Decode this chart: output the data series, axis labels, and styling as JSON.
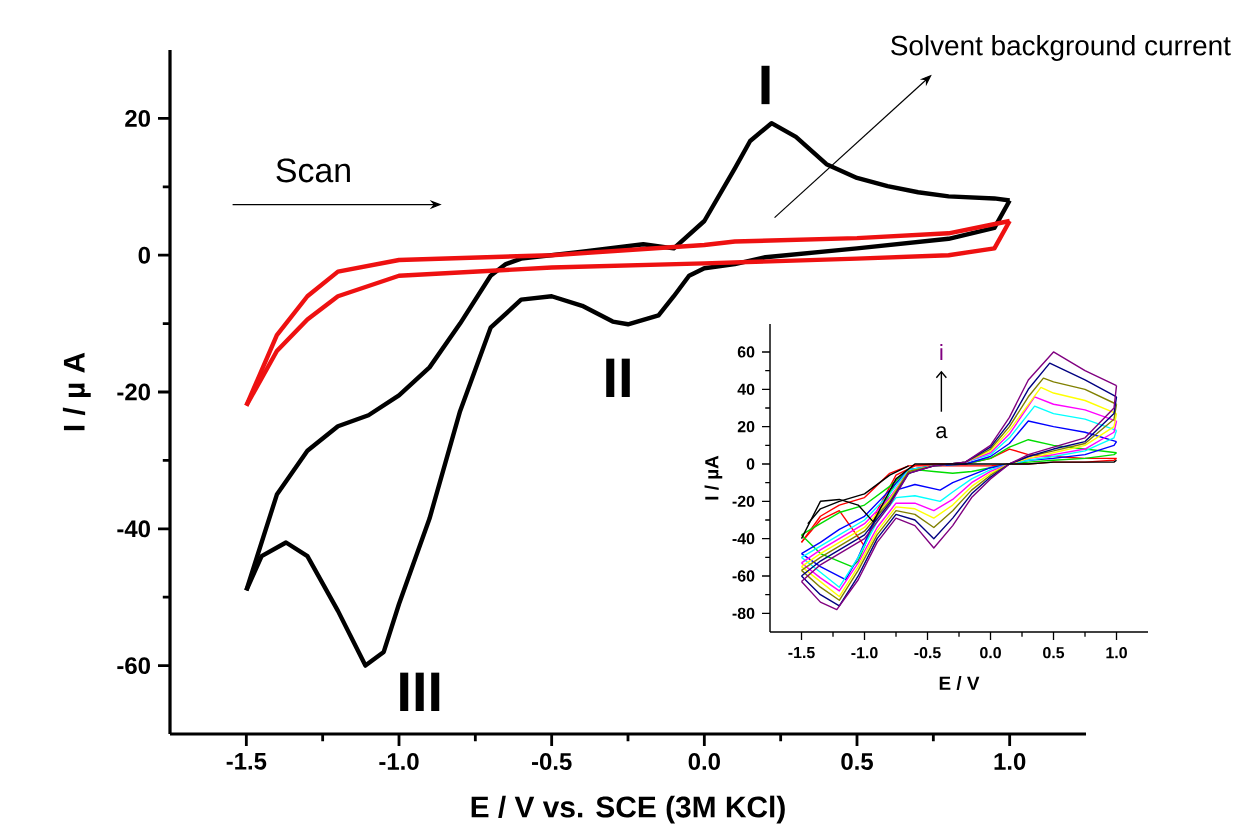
{
  "chart_data": [
    {
      "type": "line",
      "xlabel": "E / V vs. SCE (3M KCl)",
      "ylabel": "I / µ A",
      "xlim": [
        -1.75,
        1.25
      ],
      "ylim": [
        -70,
        30
      ],
      "xticks": [
        -1.5,
        {
          "value": -1,
          "label": "-1.0"
        },
        -0.5,
        {
          "value": 0,
          "label": "0.0"
        },
        0.5,
        {
          "value": 1,
          "label": "1.0"
        }
      ],
      "yticks": [
        -60,
        -40,
        -20,
        0,
        20
      ],
      "series": [
        {
          "color": "#000000",
          "x": [
            -1.5,
            -1.45,
            -1.37,
            -1.3,
            -1.2,
            -1.11,
            -1.05,
            -1.0,
            -0.9,
            -0.8,
            -0.7,
            -0.6,
            -0.5,
            -0.4,
            -0.3,
            -0.25,
            -0.15,
            -0.1,
            -0.05,
            0.0,
            0.1,
            0.2,
            0.5,
            0.8,
            0.95,
            1.0
          ],
          "values": [
            -49,
            -44,
            -42,
            -44,
            -52,
            -60,
            -58,
            -51,
            -38.5,
            -22.8,
            -10.6,
            -6.5,
            -6,
            -7.4,
            -9.7,
            -10.1,
            -8.8,
            -6,
            -3,
            -1.9,
            -1.3,
            -0.3,
            1,
            2.4,
            4,
            8
          ]
        },
        {
          "color": "#000000",
          "x": [
            -1.5,
            -1.4,
            -1.3,
            -1.2,
            -1.1,
            -1.0,
            -0.9,
            -0.8,
            -0.7,
            -0.65,
            -0.6,
            -0.4,
            -0.2,
            -0.1,
            0.0,
            0.1,
            0.15,
            0.22,
            0.3,
            0.4,
            0.5,
            0.6,
            0.7,
            0.8,
            0.95,
            1.0
          ],
          "values": [
            -49,
            -35,
            -28.6,
            -25,
            -23.4,
            -20.5,
            -16.4,
            -10,
            -3,
            -1.3,
            -0.5,
            0.5,
            1.6,
            1,
            5,
            12.7,
            16.7,
            19.3,
            17.3,
            13.3,
            11.3,
            10.1,
            9.2,
            8.6,
            8.3,
            8
          ]
        },
        {
          "color": "#ee1111",
          "x": [
            -1.5,
            -1.4,
            -1.3,
            -1.2,
            -1.0,
            -0.5,
            0.0,
            0.1,
            0.5,
            0.8,
            1.0
          ],
          "values": [
            -22,
            -11.7,
            -6,
            -2.4,
            -0.7,
            0,
            1.5,
            2,
            2.5,
            3.2,
            5
          ]
        },
        {
          "color": "#ee1111",
          "x": [
            -1.5,
            -1.4,
            -1.3,
            -1.2,
            -1.0,
            -0.5,
            0.0,
            0.5,
            0.8,
            0.95,
            1.0
          ],
          "values": [
            -22,
            -14,
            -9.4,
            -6,
            -3,
            -1.8,
            -1.2,
            -0.5,
            0,
            1,
            5
          ]
        }
      ],
      "annotations": [
        {
          "text": "I",
          "x": 0.22,
          "y": 19.3
        },
        {
          "text": "II",
          "x": -0.25,
          "y": -10
        },
        {
          "text": "III",
          "x": -1.11,
          "y": -60
        },
        "Scan",
        "Solvent background current"
      ]
    },
    {
      "type": "line",
      "xlabel": "E / V",
      "ylabel": "I / µA",
      "xlim": [
        -1.75,
        1.25
      ],
      "ylim": [
        -90,
        75
      ],
      "xticks": [
        -1.5,
        {
          "value": -1,
          "label": "-1.0"
        },
        -0.5,
        {
          "value": 0,
          "label": "0.0"
        },
        0.5,
        {
          "value": 1,
          "label": "1.0"
        }
      ],
      "yticks": [
        -80,
        -60,
        -40,
        -20,
        0,
        20,
        40,
        60
      ],
      "series": [
        {
          "color": "#ff0000",
          "x": [
            -1.5,
            -1.35,
            -1.2,
            -1.0,
            -0.9,
            -0.75,
            -0.6,
            -0.45,
            -0.3,
            -0.15,
            0,
            0.15,
            0.3,
            0.5,
            0.75,
            0.98,
            1.0
          ],
          "values": [
            -42,
            -30,
            -25,
            -44,
            -25,
            -6,
            -1,
            -1,
            -1,
            -1,
            -1,
            0,
            0,
            1,
            1,
            2,
            3
          ]
        },
        {
          "color": "#ff0000",
          "x": [
            -1.5,
            -1.35,
            -1.2,
            -1.0,
            -0.8,
            -0.65,
            -0.45,
            -0.2,
            0,
            0.15,
            0.3,
            0.5,
            0.75,
            1.0
          ],
          "values": [
            -42,
            -28,
            -22,
            -18,
            -5,
            -1,
            0,
            0,
            3,
            8,
            5,
            4,
            3,
            3
          ]
        },
        {
          "color": "#00dd00",
          "x": [
            -1.5,
            -1.35,
            -1.1,
            -1.05,
            -0.9,
            -0.75,
            -0.6,
            -0.45,
            -0.3,
            -0.15,
            0,
            0.15,
            0.3,
            0.5,
            0.75,
            0.98,
            1.0
          ],
          "values": [
            -38,
            -48,
            -55,
            -52,
            -28,
            -10,
            -3,
            -4,
            -5,
            -4,
            -2,
            0,
            1,
            2,
            3,
            5,
            6
          ]
        },
        {
          "color": "#00dd00",
          "x": [
            -1.5,
            -1.35,
            -1.2,
            -1.0,
            -0.8,
            -0.65,
            -0.45,
            -0.2,
            0,
            0.15,
            0.3,
            0.5,
            0.75,
            1.0
          ],
          "values": [
            -38,
            -32,
            -26,
            -22,
            -12,
            -3,
            -1,
            0,
            3,
            9,
            13,
            10,
            8,
            6
          ]
        },
        {
          "color": "#0000ff",
          "x": [
            -1.5,
            -1.35,
            -1.15,
            -1.05,
            -0.9,
            -0.75,
            -0.6,
            -0.4,
            -0.3,
            -0.15,
            0,
            0.15,
            0.3,
            0.5,
            0.75,
            0.98,
            1.0
          ],
          "values": [
            -48,
            -55,
            -62,
            -50,
            -27,
            -14,
            -11,
            -14,
            -10,
            -6,
            -2,
            0,
            2,
            3,
            5,
            10,
            12
          ]
        },
        {
          "color": "#0000ff",
          "x": [
            -1.5,
            -1.35,
            -1.2,
            -1.0,
            -0.8,
            -0.65,
            -0.45,
            -0.2,
            0,
            0.15,
            0.3,
            0.5,
            0.75,
            1.0
          ],
          "values": [
            -48,
            -42,
            -35,
            -28,
            -14,
            -3,
            -1,
            0,
            4,
            11,
            23,
            20,
            17,
            12
          ]
        },
        {
          "color": "#00ffff",
          "x": [
            -1.5,
            -1.35,
            -1.2,
            -1.05,
            -0.9,
            -0.75,
            -0.6,
            -0.4,
            -0.3,
            -0.15,
            0,
            0.15,
            0.3,
            0.5,
            0.75,
            0.98,
            1.0
          ],
          "values": [
            -50,
            -58,
            -66,
            -50,
            -31,
            -18,
            -17,
            -20,
            -15,
            -8,
            -3,
            0,
            2,
            4,
            7,
            14,
            18
          ]
        },
        {
          "color": "#00ffff",
          "x": [
            -1.5,
            -1.35,
            -1.2,
            -1.0,
            -0.8,
            -0.65,
            -0.45,
            -0.2,
            0,
            0.15,
            0.35,
            0.5,
            0.75,
            1.0
          ],
          "values": [
            -50,
            -44,
            -38,
            -30,
            -16,
            -3,
            -1,
            1,
            5,
            14,
            31,
            27,
            24,
            18
          ]
        },
        {
          "color": "#ff00ff",
          "x": [
            -1.5,
            -1.35,
            -1.2,
            -1.05,
            -0.9,
            -0.75,
            -0.6,
            -0.45,
            -0.3,
            -0.15,
            0,
            0.15,
            0.3,
            0.5,
            0.75,
            0.98,
            1.0
          ],
          "values": [
            -53,
            -61,
            -68,
            -53,
            -34,
            -21,
            -21,
            -25,
            -19,
            -10,
            -4,
            0,
            3,
            5,
            8,
            17,
            23
          ]
        },
        {
          "color": "#ff00ff",
          "x": [
            -1.5,
            -1.35,
            -1.2,
            -1.0,
            -0.8,
            -0.65,
            -0.45,
            -0.2,
            0,
            0.15,
            0.35,
            0.5,
            0.75,
            1.0
          ],
          "values": [
            -53,
            -46,
            -40,
            -32,
            -18,
            -4,
            -1,
            1,
            6,
            16,
            36,
            32,
            29,
            23
          ]
        },
        {
          "color": "#ffff00",
          "x": [
            -1.5,
            -1.35,
            -1.2,
            -1.05,
            -0.9,
            -0.75,
            -0.6,
            -0.45,
            -0.3,
            -0.15,
            0,
            0.15,
            0.3,
            0.5,
            0.75,
            0.98,
            1.0
          ],
          "values": [
            -55,
            -63,
            -71,
            -55,
            -36,
            -23,
            -24,
            -29,
            -22,
            -12,
            -5,
            0,
            3,
            6,
            10,
            20,
            27
          ]
        },
        {
          "color": "#ffff00",
          "x": [
            -1.5,
            -1.35,
            -1.2,
            -1.0,
            -0.8,
            -0.65,
            -0.45,
            -0.2,
            0,
            0.15,
            0.4,
            0.5,
            0.75,
            1.0
          ],
          "values": [
            -55,
            -48,
            -42,
            -34,
            -19,
            -4,
            -1,
            1,
            7,
            18,
            41,
            38,
            34,
            27
          ]
        },
        {
          "color": "#808000",
          "x": [
            -1.5,
            -1.35,
            -1.2,
            -1.05,
            -0.9,
            -0.75,
            -0.6,
            -0.45,
            -0.3,
            -0.15,
            0,
            0.15,
            0.3,
            0.5,
            0.75,
            0.98,
            1.0
          ],
          "values": [
            -57,
            -66,
            -73,
            -57,
            -38,
            -25,
            -27,
            -34,
            -25,
            -14,
            -6,
            0,
            4,
            7,
            11,
            24,
            32
          ]
        },
        {
          "color": "#808000",
          "x": [
            -1.5,
            -1.35,
            -1.2,
            -1.0,
            -0.8,
            -0.65,
            -0.45,
            -0.2,
            0,
            0.15,
            0.3,
            0.42,
            0.5,
            0.75,
            1.0
          ],
          "values": [
            -57,
            -50,
            -44,
            -36,
            -20,
            -4,
            -1,
            1,
            8,
            20,
            36,
            46,
            44,
            40,
            32
          ]
        },
        {
          "color": "#000080",
          "x": [
            -1.5,
            -1.35,
            -1.2,
            -1.05,
            -0.9,
            -0.75,
            -0.6,
            -0.45,
            -0.3,
            -0.15,
            0,
            0.15,
            0.3,
            0.5,
            0.75,
            0.98,
            1.0
          ],
          "values": [
            -60,
            -70,
            -76,
            -60,
            -40,
            -27,
            -30,
            -40,
            -29,
            -16,
            -7,
            0,
            4,
            8,
            12,
            27,
            36
          ]
        },
        {
          "color": "#000080",
          "x": [
            -1.5,
            -1.35,
            -1.2,
            -1.0,
            -0.8,
            -0.65,
            -0.45,
            -0.2,
            0,
            0.15,
            0.3,
            0.47,
            0.75,
            1.0
          ],
          "values": [
            -60,
            -52,
            -46,
            -38,
            -21,
            -5,
            -1,
            1,
            9,
            22,
            40,
            54,
            45,
            36
          ]
        },
        {
          "color": "#800080",
          "x": [
            -1.5,
            -1.35,
            -1.22,
            -1.05,
            -0.9,
            -0.75,
            -0.6,
            -0.45,
            -0.3,
            -0.15,
            0,
            0.15,
            0.3,
            0.5,
            0.75,
            0.98,
            1.0
          ],
          "values": [
            -63,
            -74,
            -78,
            -62,
            -42,
            -29,
            -33,
            -45,
            -33,
            -18,
            -8,
            0,
            5,
            9,
            14,
            30,
            42
          ]
        },
        {
          "color": "#800080",
          "x": [
            -1.5,
            -1.35,
            -1.2,
            -1.0,
            -0.8,
            -0.65,
            -0.45,
            -0.2,
            0,
            0.15,
            0.3,
            0.5,
            0.75,
            1.0
          ],
          "values": [
            -63,
            -54,
            -48,
            -40,
            -22,
            -5,
            -1,
            1,
            10,
            25,
            45,
            60,
            50,
            42
          ]
        },
        {
          "color": "#000000",
          "x": [
            -1.45,
            -1.35,
            -1.2,
            -1.0,
            -0.8,
            -0.65
          ],
          "values": [
            -32,
            -24,
            -20,
            -16,
            -6,
            -1
          ]
        },
        {
          "color": "#000000",
          "x": [
            -1.5,
            -1.35,
            -1.2,
            -1.05,
            -0.93,
            -0.75,
            -0.6,
            -0.45,
            -0.3,
            -0.15,
            0,
            0.15,
            0.3,
            0.5,
            0.75,
            0.98,
            1.0
          ],
          "values": [
            -40,
            -20,
            -19,
            -22,
            -31,
            -8,
            0,
            0,
            0,
            0,
            0,
            0,
            0,
            1,
            1,
            1,
            2
          ]
        }
      ],
      "annotations": [
        "a",
        "i"
      ]
    }
  ]
}
